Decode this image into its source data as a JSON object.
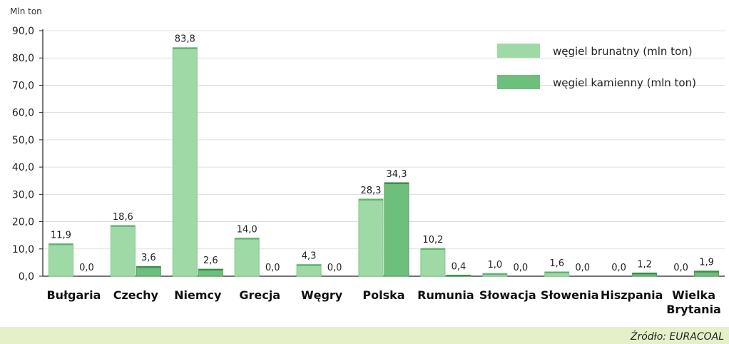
{
  "chart_data": {
    "type": "bar",
    "ylabel": "Mln ton",
    "ylim": [
      0,
      90
    ],
    "yticks": [
      "0,0",
      "10,0",
      "20,0",
      "30,0",
      "40,0",
      "50,0",
      "60,0",
      "70,0",
      "80,0",
      "90,0"
    ],
    "categories": [
      [
        "Bułgaria"
      ],
      [
        "Czechy"
      ],
      [
        "Niemcy"
      ],
      [
        "Grecja"
      ],
      [
        "Węgry"
      ],
      [
        "Polska"
      ],
      [
        "Rumunia"
      ],
      [
        "Słowacja"
      ],
      [
        "Słowenia"
      ],
      [
        "Hiszpania"
      ],
      [
        "Wielka",
        "Brytania"
      ]
    ],
    "series": [
      {
        "name": "węgiel brunatny (mln ton)",
        "color": "#9fdaa6",
        "values": [
          11.9,
          18.6,
          83.8,
          14.0,
          4.3,
          28.3,
          10.2,
          1.0,
          1.6,
          0.0,
          0.0
        ],
        "labels": [
          "11,9",
          "18,6",
          "83,8",
          "14,0",
          "4,3",
          "28,3",
          "10,2",
          "1,0",
          "1,6",
          "0,0",
          "0,0"
        ]
      },
      {
        "name": "węgiel kamienny (mln ton)",
        "color": "#6fbf7c",
        "values": [
          0.0,
          3.6,
          2.6,
          0.0,
          0.0,
          34.3,
          0.4,
          0.0,
          0.0,
          1.2,
          1.9
        ],
        "labels": [
          "0,0",
          "3,6",
          "2,6",
          "0,0",
          "0,0",
          "34,3",
          "0,4",
          "0,0",
          "0,0",
          "1,2",
          "1,9"
        ]
      }
    ],
    "legend_position": "top-right",
    "source": "Źródło: EURACOAL",
    "footer_color": "#e6f0c8"
  }
}
